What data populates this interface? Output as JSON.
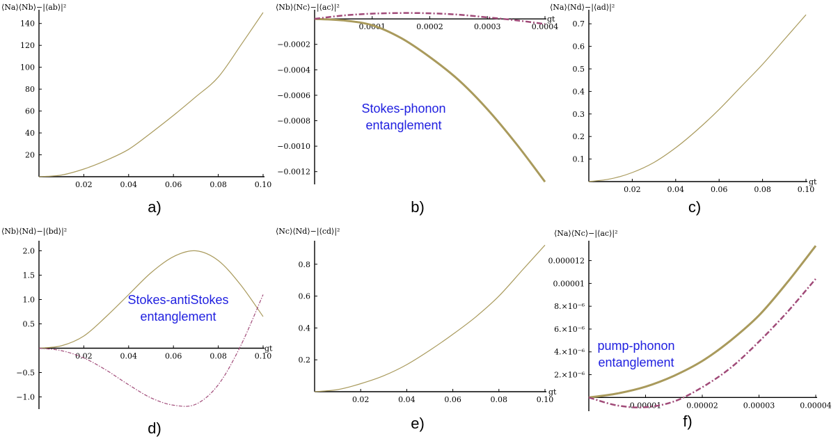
{
  "colors": {
    "curve1": "#a99a5c",
    "curve2": "#a04a78",
    "annotation": "#2020e0",
    "axis": "#000000"
  },
  "chart_data": [
    {
      "id": "a",
      "type": "line",
      "panel_label": "a)",
      "title": "⟨Na⟩⟨Nb⟩−|⟨ab⟩|²",
      "xlabel": "",
      "ylabel": "",
      "xlim": [
        0,
        0.1
      ],
      "ylim": [
        0,
        150
      ],
      "xticks": [
        0.02,
        0.04,
        0.06,
        0.08,
        0.1
      ],
      "xtick_labels": [
        "0.02",
        "0.04",
        "0.06",
        "0.08",
        "0.10"
      ],
      "yticks": [
        20,
        40,
        60,
        80,
        100,
        120,
        140
      ],
      "ytick_labels": [
        "20",
        "40",
        "60",
        "80",
        "100",
        "120",
        "140"
      ],
      "annotation": "",
      "series": [
        {
          "style": "solid",
          "color": "#a99a5c",
          "width": 1.2,
          "x": [
            0,
            0.01,
            0.02,
            0.03,
            0.04,
            0.05,
            0.06,
            0.07,
            0.08,
            0.09,
            0.1
          ],
          "y": [
            0,
            1.5,
            7,
            15,
            25,
            40,
            56,
            73,
            91,
            120,
            150
          ]
        }
      ]
    },
    {
      "id": "b",
      "type": "line",
      "panel_label": "b)",
      "title": "⟨Nb⟩⟨Nc⟩−|⟨ac⟩|²",
      "xlabel": "gt",
      "ylabel": "",
      "xlim": [
        0,
        0.0004
      ],
      "ylim": [
        -0.0013,
        5e-05
      ],
      "xticks": [
        0.0001,
        0.0002,
        0.0003,
        0.0004
      ],
      "xtick_labels": [
        "0.0001",
        "0.0002",
        "0.0003",
        "0.0004"
      ],
      "yticks": [
        -0.0002,
        -0.0004,
        -0.0006,
        -0.0008,
        -0.001,
        -0.0012
      ],
      "ytick_labels": [
        "−0.0002",
        "−0.0004",
        "−0.0006",
        "−0.0008",
        "−0.0010",
        "−0.0012"
      ],
      "annotation": [
        "Stokes-phonon",
        "entanglement"
      ],
      "series": [
        {
          "style": "solid",
          "color": "#a99a5c",
          "width": 3,
          "x": [
            0,
            5e-05,
            0.0001,
            0.00015,
            0.0002,
            0.00025,
            0.0003,
            0.00035,
            0.0004
          ],
          "y": [
            0,
            -1.2e-05,
            -5e-05,
            -0.00015,
            -0.0003,
            -0.00048,
            -0.00071,
            -0.00098,
            -0.00128
          ]
        },
        {
          "style": "dashdot",
          "color": "#a04a78",
          "width": 2.5,
          "x": [
            0,
            5e-05,
            0.0001,
            0.00015,
            0.0002,
            0.00025,
            0.0003,
            0.00035,
            0.0004
          ],
          "y": [
            0,
            2.7e-05,
            4.1e-05,
            4.6e-05,
            4.4e-05,
            3.3e-05,
            1.2e-05,
            -1.1e-05,
            -4e-05
          ]
        }
      ]
    },
    {
      "id": "c",
      "type": "line",
      "panel_label": "c)",
      "title": "⟨Na⟩⟨Nd⟩−|⟨ad⟩|²",
      "xlabel": "gt",
      "ylabel": "",
      "xlim": [
        0,
        0.1
      ],
      "ylim": [
        0,
        0.75
      ],
      "xticks": [
        0.02,
        0.04,
        0.06,
        0.08,
        0.1
      ],
      "xtick_labels": [
        "0.02",
        "0.04",
        "0.06",
        "0.08",
        "0.10"
      ],
      "yticks": [
        0.1,
        0.2,
        0.3,
        0.4,
        0.5,
        0.6,
        0.7
      ],
      "ytick_labels": [
        "0.1",
        "0.2",
        "0.3",
        "0.4",
        "0.5",
        "0.6",
        "0.7"
      ],
      "annotation": "",
      "series": [
        {
          "style": "solid",
          "color": "#a99a5c",
          "width": 1.2,
          "x": [
            0,
            0.01,
            0.02,
            0.03,
            0.04,
            0.05,
            0.06,
            0.07,
            0.08,
            0.09,
            0.1
          ],
          "y": [
            0,
            0.012,
            0.04,
            0.085,
            0.15,
            0.23,
            0.32,
            0.42,
            0.52,
            0.63,
            0.74
          ]
        }
      ]
    },
    {
      "id": "d",
      "type": "line",
      "panel_label": "d)",
      "title": "⟨Nb⟩⟨Nd⟩−|⟨bd⟩|²",
      "xlabel": "gt",
      "ylabel": "",
      "xlim": [
        0,
        0.1
      ],
      "ylim": [
        -1.25,
        2.15
      ],
      "xticks": [
        0.02,
        0.04,
        0.06,
        0.08,
        0.1
      ],
      "xtick_labels": [
        "0.02",
        "0.04",
        "0.06",
        "0.08",
        "0.10"
      ],
      "yticks": [
        2.0,
        1.5,
        1.0,
        0.5,
        -0.5,
        -1.0
      ],
      "ytick_labels": [
        "2.0",
        "1.5",
        "1.0",
        "0.5",
        "−0.5",
        "−1.0"
      ],
      "annotation": [
        "Stokes-antiStokes",
        "entanglement"
      ],
      "series": [
        {
          "style": "solid",
          "color": "#a99a5c",
          "width": 1.2,
          "x": [
            0,
            0.01,
            0.02,
            0.03,
            0.04,
            0.05,
            0.06,
            0.07,
            0.08,
            0.09,
            0.1
          ],
          "y": [
            0,
            0.05,
            0.25,
            0.65,
            1.1,
            1.55,
            1.88,
            2.0,
            1.8,
            1.3,
            0.65
          ]
        },
        {
          "style": "dashdot",
          "color": "#a04a78",
          "width": 1.2,
          "x": [
            0,
            0.01,
            0.02,
            0.03,
            0.04,
            0.05,
            0.06,
            0.07,
            0.08,
            0.09,
            0.1
          ],
          "y": [
            0,
            -0.05,
            -0.2,
            -0.45,
            -0.75,
            -1.02,
            -1.17,
            -1.15,
            -0.75,
            0.05,
            1.1
          ]
        }
      ]
    },
    {
      "id": "e",
      "type": "line",
      "panel_label": "e)",
      "title": "⟨Nc⟩⟨Nd⟩−|⟨cd⟩|²",
      "xlabel": "gt",
      "ylabel": "",
      "xlim": [
        0,
        0.1
      ],
      "ylim": [
        0,
        0.93
      ],
      "xticks": [
        0.02,
        0.04,
        0.06,
        0.08,
        0.1
      ],
      "xtick_labels": [
        "0.02",
        "0.04",
        "0.06",
        "0.08",
        "0.10"
      ],
      "yticks": [
        0.2,
        0.4,
        0.6,
        0.8
      ],
      "ytick_labels": [
        "0.2",
        "0.4",
        "0.6",
        "0.8"
      ],
      "annotation": "",
      "series": [
        {
          "style": "solid",
          "color": "#a99a5c",
          "width": 1.2,
          "x": [
            0,
            0.01,
            0.02,
            0.03,
            0.04,
            0.05,
            0.06,
            0.07,
            0.08,
            0.09,
            0.1
          ],
          "y": [
            0,
            0.013,
            0.05,
            0.1,
            0.17,
            0.26,
            0.36,
            0.47,
            0.6,
            0.76,
            0.92
          ]
        }
      ]
    },
    {
      "id": "f",
      "type": "line",
      "panel_label": "f)",
      "title": "⟨Na⟩⟨Nc⟩−|⟨ac⟩|²",
      "xlabel": "",
      "ylabel": "",
      "xlim": [
        0,
        4e-05
      ],
      "ylim": [
        -1.2e-06,
        1.35e-05
      ],
      "xticks": [
        1e-05,
        2e-05,
        3e-05,
        4e-05
      ],
      "xtick_labels": [
        "0.00001",
        "0.00002",
        "0.00003",
        "0.00004"
      ],
      "yticks": [
        2e-06,
        4e-06,
        6e-06,
        8e-06,
        1e-05,
        1.2e-05
      ],
      "ytick_labels": [
        "2.×10⁻⁶",
        "4.×10⁻⁶",
        "6.×10⁻⁶",
        "8.×10⁻⁶",
        "0.00001",
        "0.000012"
      ],
      "annotation": [
        "pump-phonon",
        "entanglement"
      ],
      "series": [
        {
          "style": "solid",
          "color": "#a99a5c",
          "width": 3,
          "x": [
            0,
            5e-06,
            1e-05,
            1.5e-05,
            2e-05,
            2.5e-05,
            3e-05,
            3.5e-05,
            4e-05
          ],
          "y": [
            0,
            3.5e-07,
            9.5e-07,
            1.9e-06,
            3.2e-06,
            5e-06,
            7.2e-06,
            1.01e-05,
            1.33e-05
          ]
        },
        {
          "style": "dashdot",
          "color": "#a04a78",
          "width": 2.5,
          "x": [
            0,
            5e-06,
            1e-05,
            1.5e-05,
            2e-05,
            2.5e-05,
            3e-05,
            3.5e-05,
            4e-05
          ],
          "y": [
            0,
            -7e-07,
            -8.5e-07,
            -3.5e-07,
            9e-07,
            2.6e-06,
            4.9e-06,
            7.5e-06,
            1.04e-05
          ]
        }
      ]
    }
  ]
}
